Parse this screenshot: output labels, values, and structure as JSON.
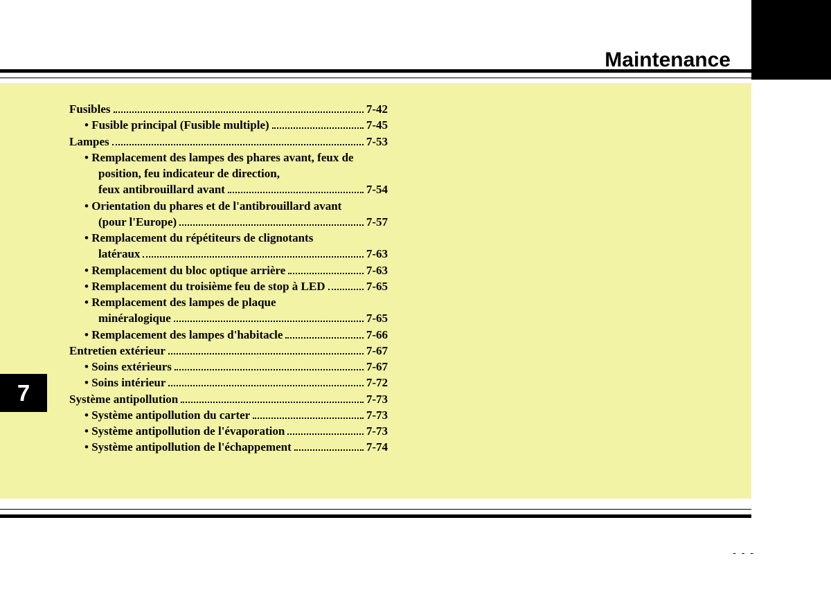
{
  "chapter": {
    "title": "Maintenance",
    "number": "7"
  },
  "footer": "- - -",
  "toc": [
    {
      "type": "main",
      "label": "Fusibles",
      "page": "7-42"
    },
    {
      "type": "sub",
      "label": "• Fusible principal (Fusible multiple)",
      "page": "7-45"
    },
    {
      "type": "main",
      "label": "Lampes",
      "page": "7-53"
    },
    {
      "type": "wrap",
      "label": "• Remplacement des lampes des phares avant, feux de"
    },
    {
      "type": "wrap2",
      "label": "position, feu indicateur de direction,"
    },
    {
      "type": "sub2",
      "label": "feux antibrouillard avant",
      "page": "7-54"
    },
    {
      "type": "wrap",
      "label": "• Orientation du phares et de l'antibrouillard avant"
    },
    {
      "type": "sub2",
      "label": "(pour l'Europe)",
      "page": "7-57"
    },
    {
      "type": "wrap",
      "label": "• Remplacement du  répétiteurs de clignotants"
    },
    {
      "type": "sub2",
      "label": "latéraux",
      "page": "7-63"
    },
    {
      "type": "sub",
      "label": "• Remplacement du bloc optique arrière",
      "page": "7-63"
    },
    {
      "type": "sub",
      "label": "• Remplacement du troisième feu de stop à LED",
      "page": "7-65"
    },
    {
      "type": "wrap",
      "label": "• Remplacement des lampes de plaque"
    },
    {
      "type": "sub2",
      "label": "minéralogique",
      "page": "7-65"
    },
    {
      "type": "sub",
      "label": "• Remplacement des lampes d'habitacle",
      "page": "7-66"
    },
    {
      "type": "main",
      "label": "Entretien extérieur",
      "page": "7-67"
    },
    {
      "type": "sub",
      "label": "• Soins extérieurs",
      "page": "7-67"
    },
    {
      "type": "sub",
      "label": "• Soins intérieur",
      "page": "7-72"
    },
    {
      "type": "main",
      "label": "Système antipollution",
      "page": "7-73"
    },
    {
      "type": "sub",
      "label": "• Système antipollution du carter",
      "page": "7-73"
    },
    {
      "type": "sub",
      "label": "• Système antipollution de l'évaporation",
      "page": "7-73"
    },
    {
      "type": "sub",
      "label": "• Système antipollution de l'échappement",
      "page": "7-74"
    }
  ]
}
